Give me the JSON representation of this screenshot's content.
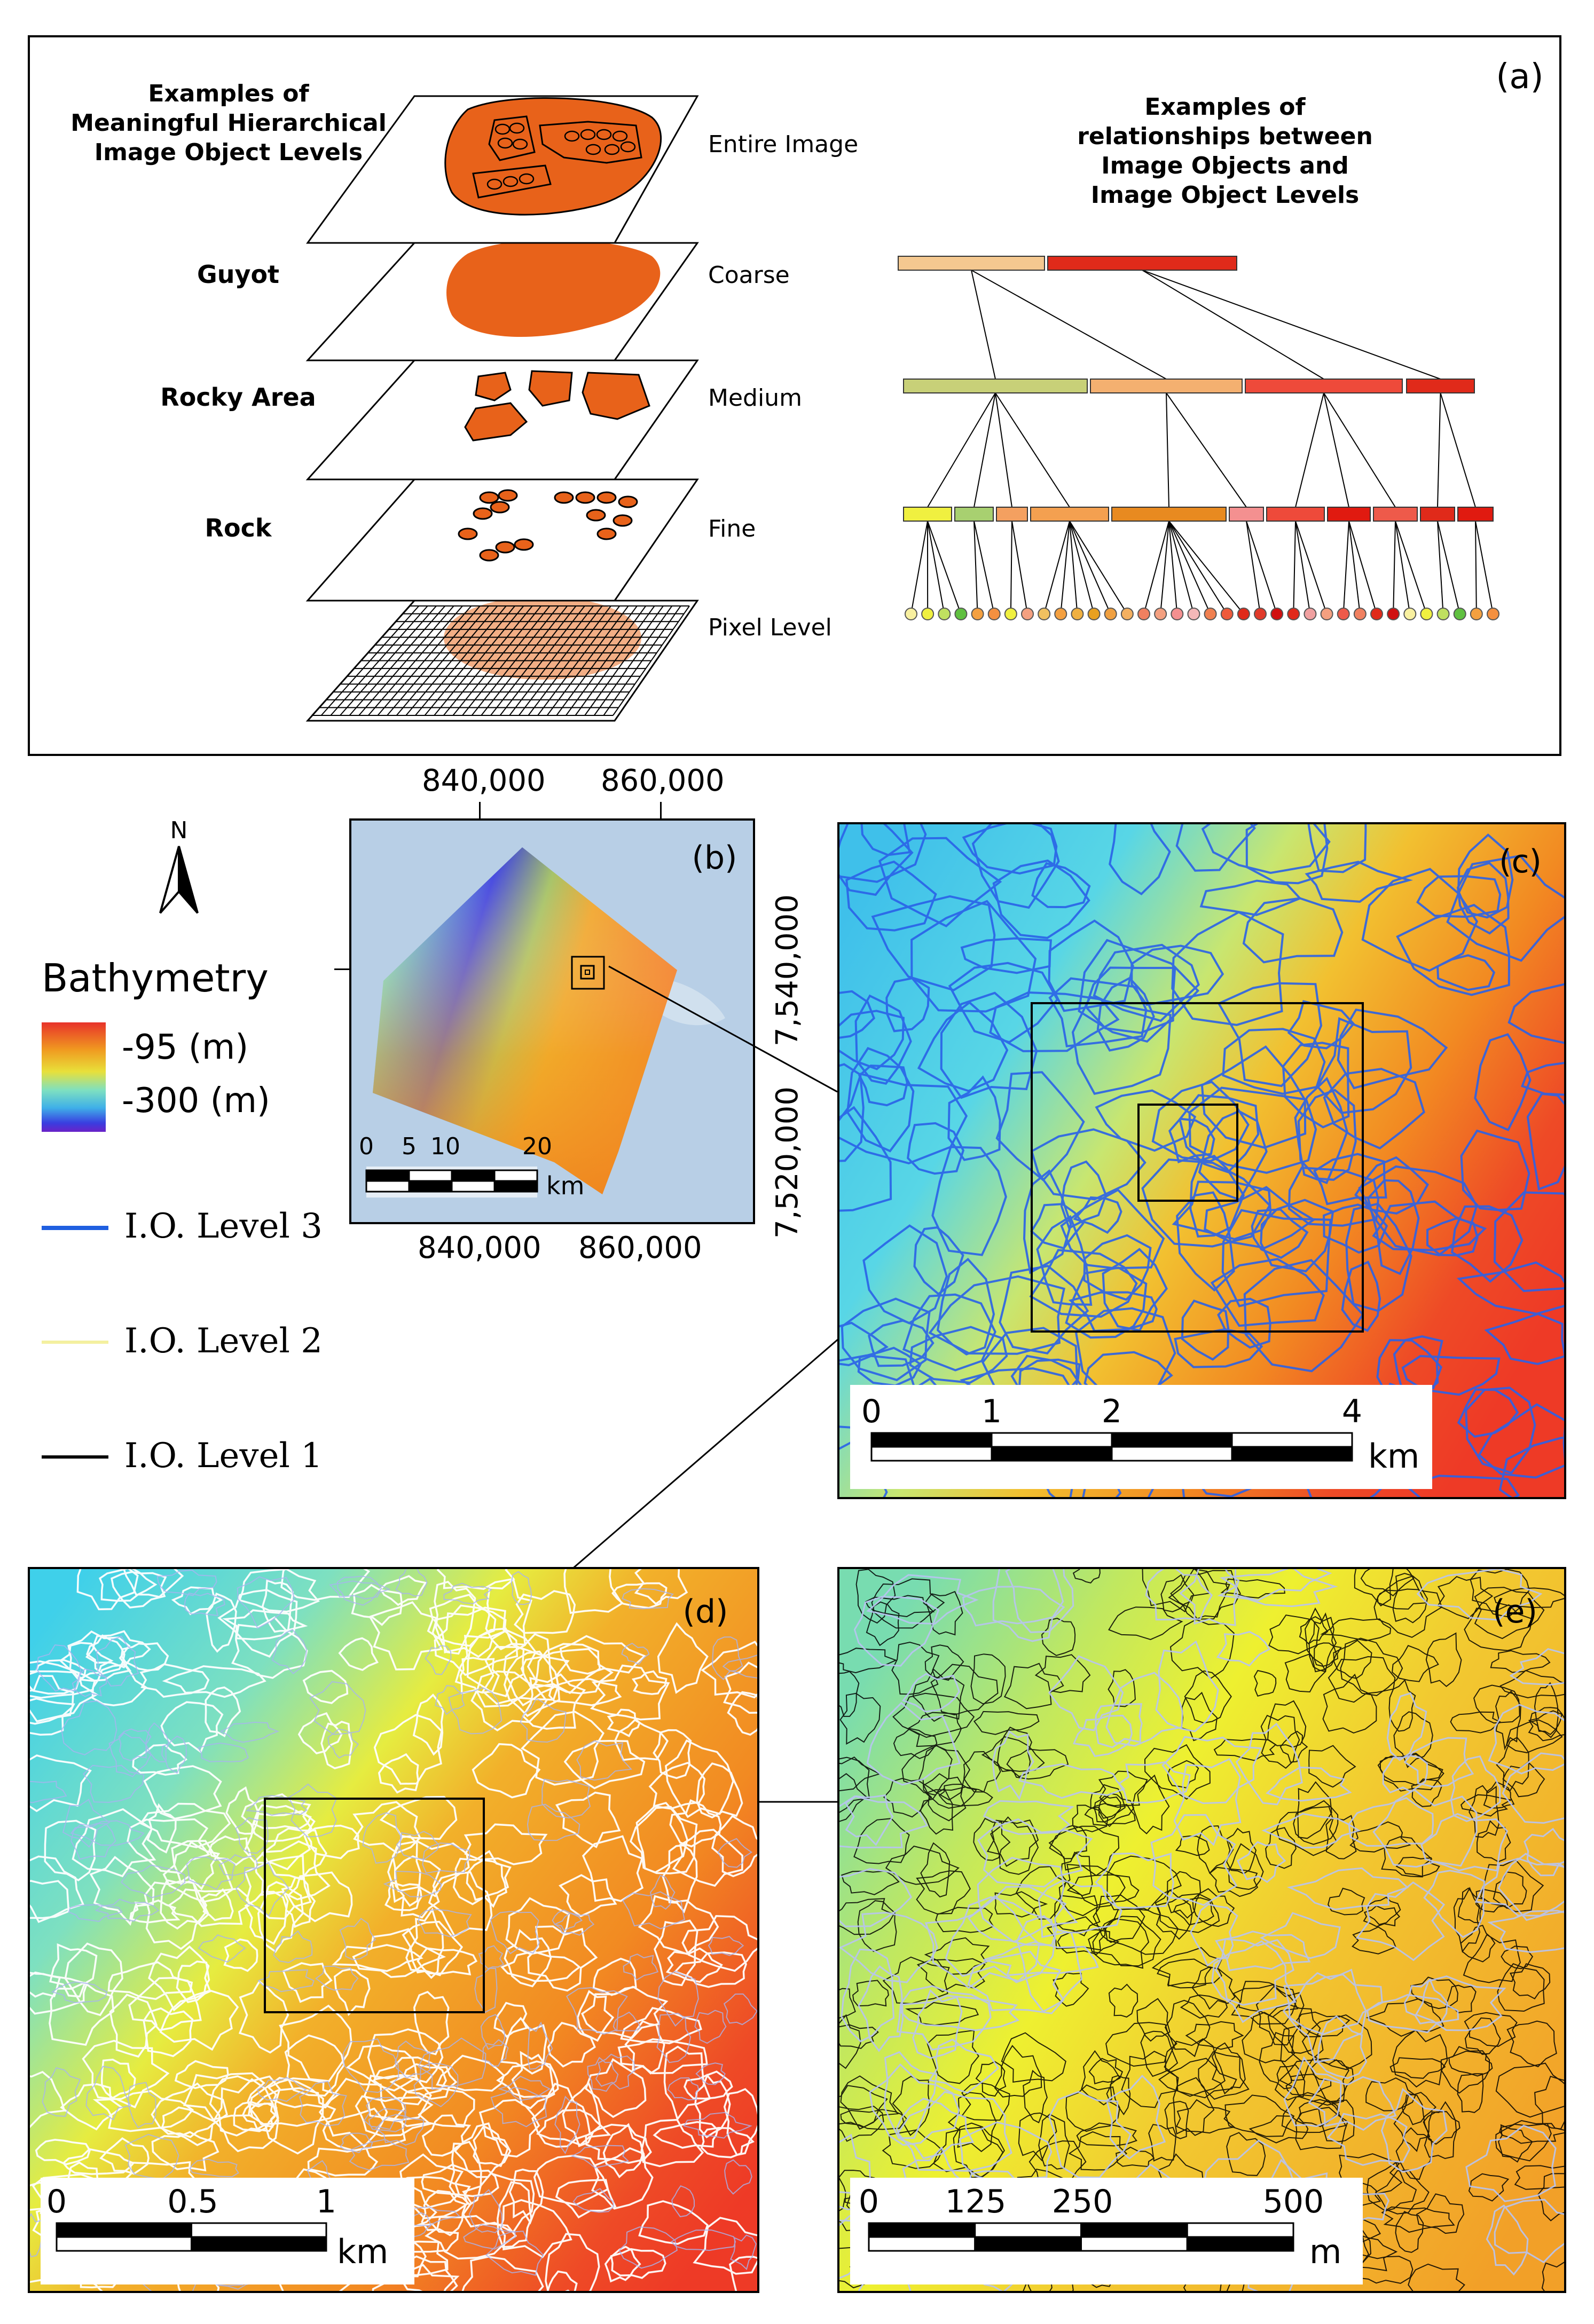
{
  "panel_a": {
    "label": "(a)",
    "left_title": [
      "Examples of",
      "Meaningful Hierarchical",
      "Image Object Levels"
    ],
    "right_title": [
      "Examples of",
      "relationships between",
      "Image Objects and",
      "Image Object Levels"
    ],
    "objects": [
      "Guyot",
      "Rocky Area",
      "Rock"
    ],
    "levels": [
      "Entire Image",
      "Coarse",
      "Medium",
      "Fine",
      "Pixel Level"
    ],
    "colors": {
      "object_fill": "#e8621a",
      "pixel_fill": "#f0a070"
    }
  },
  "panel_b": {
    "label": "(b)",
    "top_ticks": [
      "840,000",
      "860,000"
    ],
    "bottom_ticks": [
      "840,000",
      "860,000"
    ],
    "right_ticks": [
      "7,540,000",
      "7,520,000"
    ],
    "scale_ticks": [
      "0",
      "5",
      "10",
      "20"
    ],
    "scale_unit": "km"
  },
  "panel_c": {
    "label": "(c)",
    "scale_ticks": [
      "0",
      "1",
      "2",
      "4"
    ],
    "scale_unit": "km"
  },
  "panel_d": {
    "label": "(d)",
    "scale_ticks": [
      "0",
      "0.5",
      "1"
    ],
    "scale_unit": "km"
  },
  "panel_e": {
    "label": "(e)",
    "scale_ticks": [
      "0",
      "125",
      "250",
      "500"
    ],
    "scale_unit": "m"
  },
  "north_arrow": {
    "label": "N"
  },
  "legend": {
    "title": "Bathymetry",
    "high": "-95 (m)",
    "low": "-300 (m)",
    "lines": [
      {
        "label": "I.O. Level 3",
        "color": "#1f5fe0"
      },
      {
        "label": "I.O. Level 2",
        "color": "#f4f0a0"
      },
      {
        "label": "I.O. Level 1",
        "color": "#000000"
      }
    ]
  }
}
